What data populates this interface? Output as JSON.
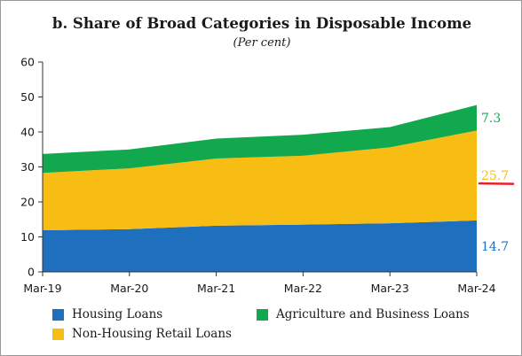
{
  "chart_data": {
    "type": "area",
    "stacked": true,
    "title": "b. Share of Broad Categories in Disposable Income",
    "subtitle": "(Per cent)",
    "categories": [
      "Mar-19",
      "Mar-20",
      "Mar-21",
      "Mar-22",
      "Mar-23",
      "Mar-24"
    ],
    "ylim": [
      0,
      60
    ],
    "yticks": [
      0,
      10,
      20,
      30,
      40,
      50,
      60
    ],
    "grid": false,
    "legend_position": "bottom",
    "series": [
      {
        "name": "Housing Loans",
        "color": "#1f6fbf",
        "values": [
          11.9,
          12.2,
          13.2,
          13.5,
          13.9,
          14.7
        ]
      },
      {
        "name": "Non-Housing Retail Loans",
        "color": "#f7bd13",
        "values": [
          16.4,
          17.4,
          19.2,
          19.7,
          21.7,
          25.7
        ]
      },
      {
        "name": "Agriculture and Business Loans",
        "color": "#12a84d",
        "values": [
          5.4,
          5.4,
          5.7,
          6.0,
          5.8,
          7.3
        ]
      }
    ],
    "end_labels": [
      {
        "series": "Agriculture and Business Loans",
        "text": "7.3",
        "color": "#12a84d"
      },
      {
        "series": "Non-Housing Retail Loans",
        "text": "25.7",
        "color": "#f7bd13"
      },
      {
        "series": "Housing Loans",
        "text": "14.7",
        "color": "#1f6fbf"
      }
    ],
    "annotation": {
      "type": "underline",
      "target": "Non-Housing Retail Loans",
      "color": "#e8202c"
    }
  }
}
